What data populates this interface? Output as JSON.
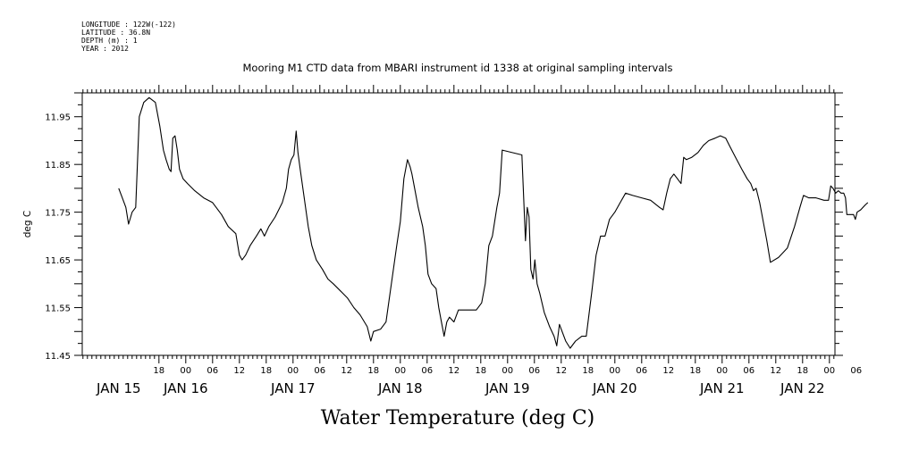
{
  "header": {
    "lines": [
      "LONGITUDE : 122W(-122)",
      "LATITUDE : 36.8N",
      "DEPTH (m) : 1",
      "YEAR : 2012"
    ]
  },
  "chart_data": {
    "type": "line",
    "title": "Mooring M1 CTD data from MBARI instrument id 1338 at original sampling intervals",
    "xlabel": "Water Temperature (deg C)",
    "ylabel": "deg C",
    "ylim": [
      11.45,
      12.0
    ],
    "yticks": [
      11.45,
      11.55,
      11.65,
      11.75,
      11.85,
      11.95
    ],
    "ytick_labels": [
      "11.45",
      "11.55",
      "11.65",
      "11.75",
      "11.85",
      "11.95"
    ],
    "x_unit": "hours since 00:00 JAN 15 2012",
    "xlim": [
      9,
      174
    ],
    "hour_ticks": [
      {
        "h": 18,
        "label": "18"
      },
      {
        "h": 24,
        "label": "00"
      },
      {
        "h": 30,
        "label": "06"
      },
      {
        "h": 36,
        "label": "12"
      },
      {
        "h": 42,
        "label": "18"
      },
      {
        "h": 48,
        "label": "00"
      },
      {
        "h": 54,
        "label": "06"
      },
      {
        "h": 60,
        "label": "12"
      },
      {
        "h": 66,
        "label": "18"
      },
      {
        "h": 72,
        "label": "00"
      },
      {
        "h": 78,
        "label": "06"
      },
      {
        "h": 84,
        "label": "12"
      },
      {
        "h": 90,
        "label": "18"
      },
      {
        "h": 96,
        "label": "00"
      },
      {
        "h": 102,
        "label": "06"
      },
      {
        "h": 108,
        "label": "12"
      },
      {
        "h": 114,
        "label": "18"
      },
      {
        "h": 120,
        "label": "00"
      },
      {
        "h": 126,
        "label": "06"
      },
      {
        "h": 132,
        "label": "12"
      },
      {
        "h": 138,
        "label": "18"
      },
      {
        "h": 144,
        "label": "00"
      },
      {
        "h": 150,
        "label": "06"
      },
      {
        "h": 156,
        "label": "12"
      },
      {
        "h": 162,
        "label": "18"
      },
      {
        "h": 168,
        "label": "00"
      },
      {
        "h": 174,
        "label": "06"
      }
    ],
    "day_labels": [
      {
        "h": 9,
        "label": "JAN 15"
      },
      {
        "h": 24,
        "label": "JAN 16"
      },
      {
        "h": 48,
        "label": "JAN 17"
      },
      {
        "h": 72,
        "label": "JAN 18"
      },
      {
        "h": 96,
        "label": "JAN 19"
      },
      {
        "h": 120,
        "label": "JAN 20"
      },
      {
        "h": 144,
        "label": "JAN 21"
      },
      {
        "h": 162,
        "label": "JAN 22"
      }
    ],
    "series": [
      {
        "color": "#000000",
        "points": [
          [
            9.0,
            11.8
          ],
          [
            9.8,
            11.78
          ],
          [
            10.6,
            11.76
          ],
          [
            11.2,
            11.725
          ],
          [
            12.0,
            11.75
          ],
          [
            12.8,
            11.76
          ],
          [
            13.6,
            11.95
          ],
          [
            14.6,
            11.98
          ],
          [
            15.8,
            11.99
          ],
          [
            17.2,
            11.98
          ],
          [
            18.2,
            11.93
          ],
          [
            19.0,
            11.88
          ],
          [
            19.6,
            11.86
          ],
          [
            20.3,
            11.84
          ],
          [
            20.7,
            11.835
          ],
          [
            21.1,
            11.905
          ],
          [
            21.6,
            11.91
          ],
          [
            22.1,
            11.88
          ],
          [
            22.6,
            11.84
          ],
          [
            23.4,
            11.82
          ],
          [
            24.4,
            11.81
          ],
          [
            26.0,
            11.795
          ],
          [
            28.0,
            11.78
          ],
          [
            30.0,
            11.77
          ],
          [
            32.0,
            11.745
          ],
          [
            33.5,
            11.72
          ],
          [
            35.2,
            11.705
          ],
          [
            36.0,
            11.66
          ],
          [
            36.6,
            11.65
          ],
          [
            37.4,
            11.66
          ],
          [
            38.4,
            11.68
          ],
          [
            39.8,
            11.7
          ],
          [
            40.8,
            11.715
          ],
          [
            41.6,
            11.7
          ],
          [
            42.6,
            11.72
          ],
          [
            44.0,
            11.74
          ],
          [
            45.6,
            11.77
          ],
          [
            46.5,
            11.8
          ],
          [
            47.0,
            11.84
          ],
          [
            47.6,
            11.86
          ],
          [
            48.2,
            11.87
          ],
          [
            48.7,
            11.92
          ],
          [
            49.1,
            11.875
          ],
          [
            49.6,
            11.84
          ],
          [
            50.2,
            11.8
          ],
          [
            50.8,
            11.76
          ],
          [
            51.4,
            11.72
          ],
          [
            52.2,
            11.68
          ],
          [
            53.2,
            11.65
          ],
          [
            54.6,
            11.63
          ],
          [
            55.8,
            11.61
          ],
          [
            57.0,
            11.6
          ],
          [
            58.6,
            11.585
          ],
          [
            60.2,
            11.57
          ],
          [
            61.6,
            11.55
          ],
          [
            63.0,
            11.535
          ],
          [
            64.6,
            11.51
          ],
          [
            65.4,
            11.48
          ],
          [
            66.0,
            11.5
          ],
          [
            67.6,
            11.505
          ],
          [
            68.8,
            11.52
          ],
          [
            70.0,
            11.6
          ],
          [
            71.2,
            11.68
          ],
          [
            72.0,
            11.73
          ],
          [
            72.8,
            11.82
          ],
          [
            73.6,
            11.86
          ],
          [
            74.2,
            11.845
          ],
          [
            74.6,
            11.83
          ],
          [
            75.2,
            11.8
          ],
          [
            76.0,
            11.76
          ],
          [
            77.0,
            11.72
          ],
          [
            77.6,
            11.68
          ],
          [
            78.2,
            11.62
          ],
          [
            79.0,
            11.6
          ],
          [
            80.0,
            11.59
          ],
          [
            80.6,
            11.55
          ],
          [
            81.2,
            11.52
          ],
          [
            81.8,
            11.49
          ],
          [
            82.4,
            11.52
          ],
          [
            83.0,
            11.53
          ],
          [
            84.0,
            11.52
          ],
          [
            85.0,
            11.545
          ],
          [
            87.0,
            11.545
          ],
          [
            89.0,
            11.545
          ],
          [
            90.2,
            11.56
          ],
          [
            91.0,
            11.6
          ],
          [
            91.8,
            11.68
          ],
          [
            92.6,
            11.7
          ],
          [
            93.6,
            11.76
          ],
          [
            94.2,
            11.79
          ],
          [
            94.8,
            11.88
          ],
          [
            99.2,
            11.87
          ],
          [
            99.6,
            11.78
          ],
          [
            100.0,
            11.69
          ],
          [
            100.4,
            11.76
          ],
          [
            100.8,
            11.74
          ],
          [
            101.2,
            11.63
          ],
          [
            101.7,
            11.61
          ],
          [
            102.1,
            11.65
          ],
          [
            102.6,
            11.6
          ],
          [
            103.2,
            11.58
          ],
          [
            104.2,
            11.54
          ],
          [
            105.4,
            11.51
          ],
          [
            106.4,
            11.49
          ],
          [
            107.0,
            11.47
          ],
          [
            107.6,
            11.515
          ],
          [
            108.2,
            11.5
          ],
          [
            109.0,
            11.48
          ],
          [
            110.0,
            11.465
          ],
          [
            111.2,
            11.48
          ],
          [
            112.6,
            11.49
          ],
          [
            113.6,
            11.49
          ],
          [
            114.8,
            11.58
          ],
          [
            115.8,
            11.66
          ],
          [
            116.8,
            11.7
          ],
          [
            117.8,
            11.7
          ],
          [
            118.8,
            11.735
          ],
          [
            120.0,
            11.75
          ],
          [
            121.2,
            11.77
          ],
          [
            122.4,
            11.79
          ],
          [
            124.0,
            11.785
          ],
          [
            126.0,
            11.78
          ],
          [
            128.0,
            11.775
          ],
          [
            130.0,
            11.76
          ],
          [
            130.8,
            11.755
          ],
          [
            131.6,
            11.79
          ],
          [
            132.4,
            11.82
          ],
          [
            133.2,
            11.83
          ],
          [
            134.0,
            11.82
          ],
          [
            134.8,
            11.81
          ],
          [
            135.4,
            11.865
          ],
          [
            136.0,
            11.86
          ],
          [
            137.2,
            11.865
          ],
          [
            138.6,
            11.875
          ],
          [
            139.8,
            11.89
          ],
          [
            141.0,
            11.9
          ],
          [
            142.4,
            11.905
          ],
          [
            143.6,
            11.91
          ],
          [
            144.8,
            11.905
          ],
          [
            145.6,
            11.89
          ],
          [
            147.0,
            11.865
          ],
          [
            148.4,
            11.84
          ],
          [
            149.6,
            11.82
          ],
          [
            150.4,
            11.81
          ],
          [
            151.0,
            11.795
          ],
          [
            151.6,
            11.8
          ],
          [
            152.4,
            11.77
          ],
          [
            153.2,
            11.73
          ],
          [
            154.0,
            11.69
          ],
          [
            154.8,
            11.645
          ],
          [
            156.6,
            11.655
          ],
          [
            158.6,
            11.675
          ],
          [
            160.2,
            11.72
          ],
          [
            161.4,
            11.76
          ],
          [
            162.2,
            11.785
          ],
          [
            163.4,
            11.78
          ],
          [
            165.0,
            11.78
          ],
          [
            166.8,
            11.775
          ],
          [
            167.8,
            11.775
          ],
          [
            168.3,
            11.805
          ],
          [
            168.8,
            11.8
          ],
          [
            169.4,
            11.79
          ],
          [
            170.0,
            11.795
          ],
          [
            170.6,
            11.79
          ],
          [
            171.2,
            11.79
          ],
          [
            171.6,
            11.78
          ],
          [
            171.9,
            11.745
          ],
          [
            172.6,
            11.745
          ],
          [
            173.4,
            11.745
          ],
          [
            173.8,
            11.735
          ],
          [
            174.2,
            11.75
          ],
          [
            175.0,
            11.755
          ],
          [
            176.0,
            11.765
          ],
          [
            176.6,
            11.77
          ]
        ]
      }
    ]
  }
}
